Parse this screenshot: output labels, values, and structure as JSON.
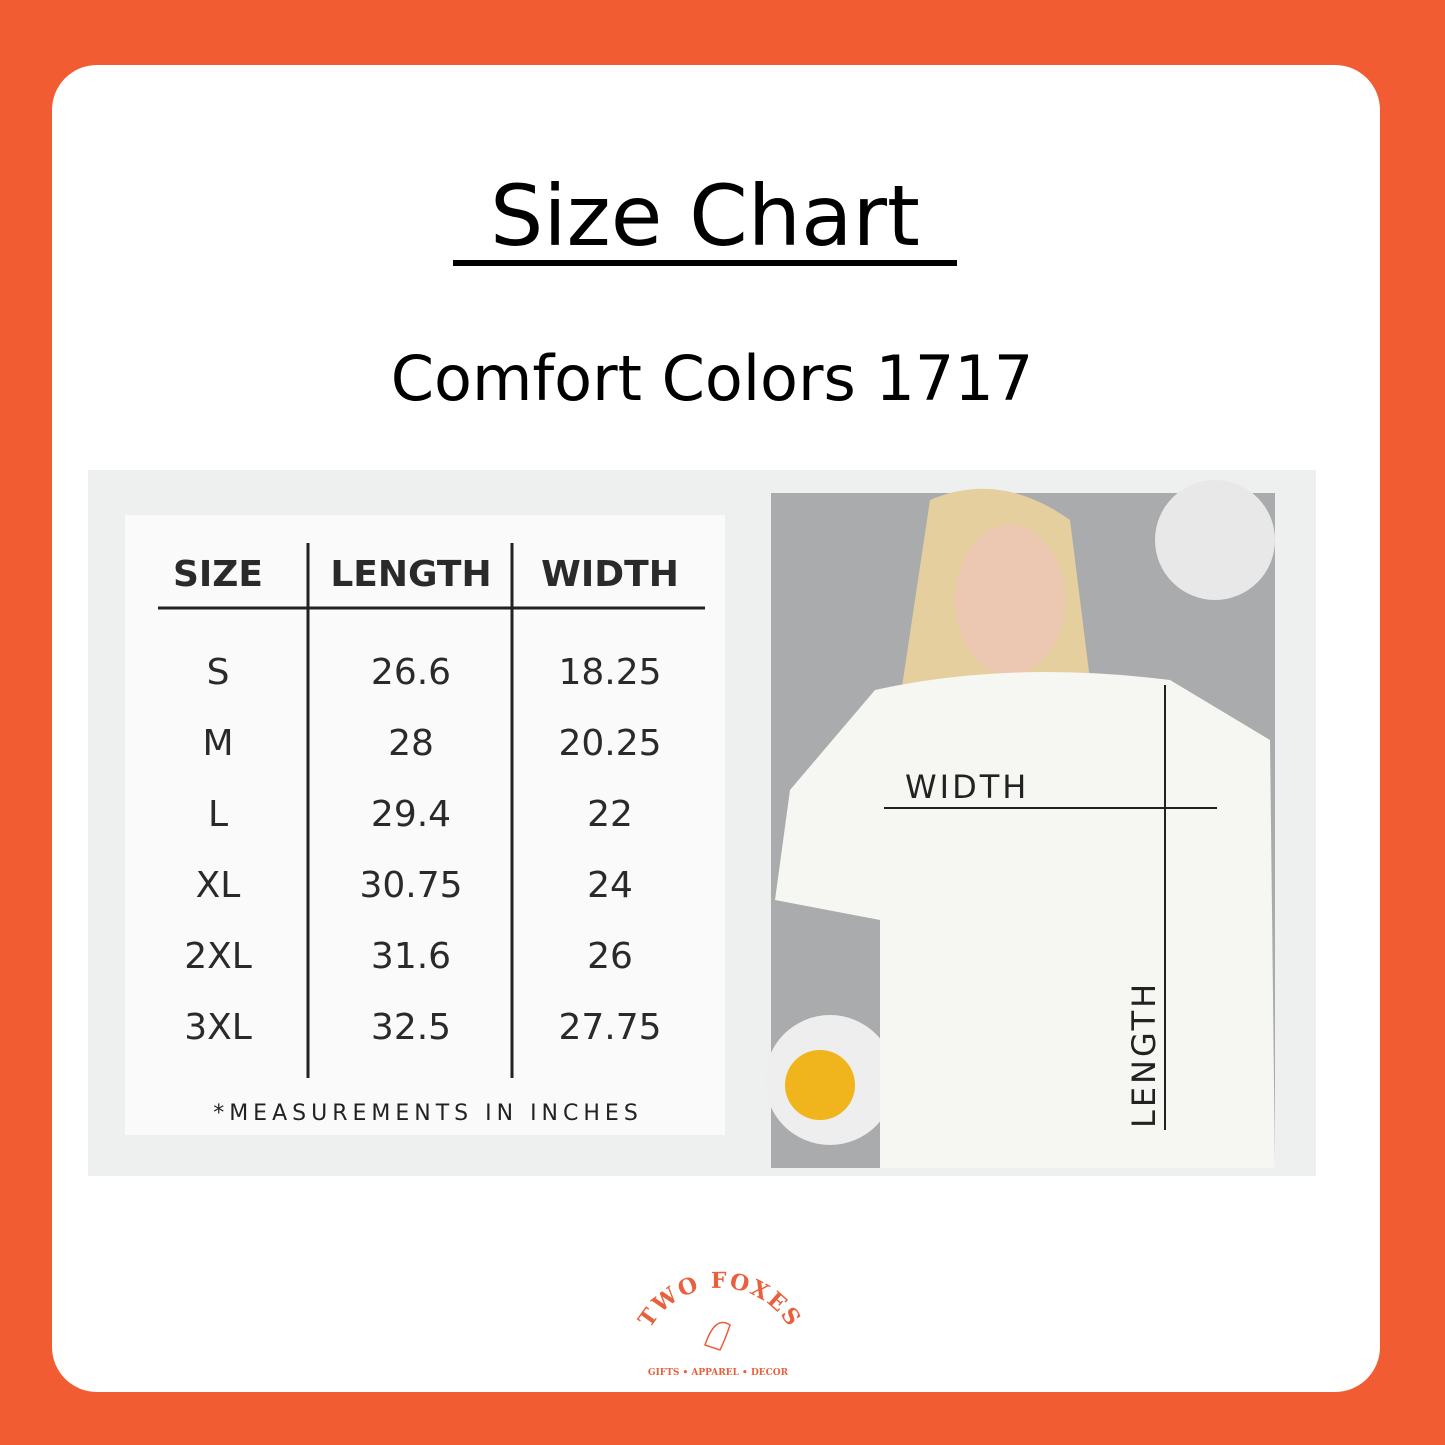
{
  "header": {
    "title": "Size Chart",
    "subtitle": "Comfort Colors 1717"
  },
  "table": {
    "columns": [
      "SIZE",
      "LENGTH",
      "WIDTH"
    ],
    "rows": [
      [
        "S",
        "26.6",
        "18.25"
      ],
      [
        "M",
        "28",
        "20.25"
      ],
      [
        "L",
        "29.4",
        "22"
      ],
      [
        "XL",
        "30.75",
        "24"
      ],
      [
        "2XL",
        "31.6",
        "26"
      ],
      [
        "3XL",
        "32.5",
        "27.75"
      ]
    ],
    "note": "*MEASUREMENTS IN INCHES"
  },
  "photo": {
    "width_label": "WIDTH",
    "length_label": "LENGTH"
  },
  "logo": {
    "name": "TWO FOXES",
    "tagline": "GIFTS • APPAREL • DECOR"
  }
}
